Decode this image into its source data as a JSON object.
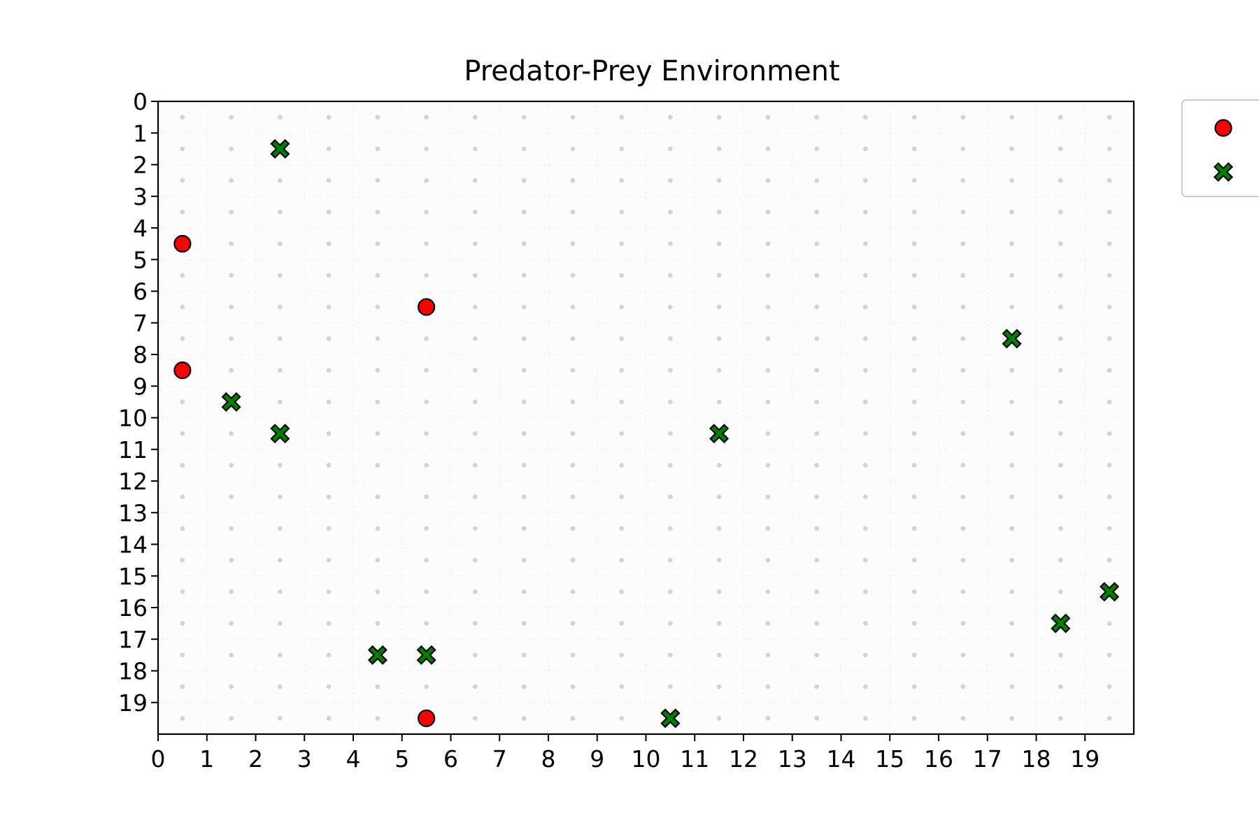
{
  "chart_data": {
    "type": "scatter",
    "title": "Predator-Prey Environment",
    "xlabel": "",
    "ylabel": "",
    "xlim": [
      0,
      20
    ],
    "ylim": [
      20,
      0
    ],
    "y_inverted": true,
    "grid": true,
    "grid_style": "dotted",
    "x_ticks": [
      0,
      1,
      2,
      3,
      4,
      5,
      6,
      7,
      8,
      9,
      10,
      11,
      12,
      13,
      14,
      15,
      16,
      17,
      18,
      19
    ],
    "y_ticks": [
      0,
      1,
      2,
      3,
      4,
      5,
      6,
      7,
      8,
      9,
      10,
      11,
      12,
      13,
      14,
      15,
      16,
      17,
      18,
      19
    ],
    "legend_placement": "outside-top-right",
    "background_points": {
      "description": "cell centers",
      "color": "#d3d3d3"
    },
    "series": [
      {
        "marker": "circle",
        "color": "#ff0000",
        "edge_color": "#000000",
        "points": [
          {
            "x": 0.5,
            "y": 4.5
          },
          {
            "x": 5.5,
            "y": 6.5
          },
          {
            "x": 0.5,
            "y": 8.5
          },
          {
            "x": 5.5,
            "y": 19.5
          }
        ]
      },
      {
        "marker": "x",
        "color": "#008000",
        "edge_color": "#000000",
        "points": [
          {
            "x": 2.5,
            "y": 1.5
          },
          {
            "x": 17.5,
            "y": 7.5
          },
          {
            "x": 1.5,
            "y": 9.5
          },
          {
            "x": 2.5,
            "y": 10.5
          },
          {
            "x": 11.5,
            "y": 10.5
          },
          {
            "x": 19.5,
            "y": 15.5
          },
          {
            "x": 18.5,
            "y": 16.5
          },
          {
            "x": 4.5,
            "y": 17.5
          },
          {
            "x": 5.5,
            "y": 17.5
          },
          {
            "x": 10.5,
            "y": 19.5
          }
        ]
      }
    ]
  }
}
